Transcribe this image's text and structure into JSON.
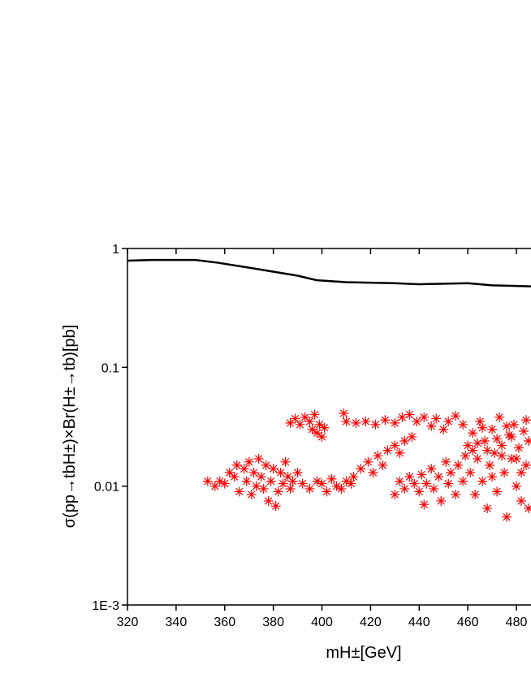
{
  "chart_data": {
    "type": "scatter",
    "x_label": "mH±[GeV]",
    "y_label": "σ(pp→tbH±)×Br(H±→tb)[pb]",
    "log_y": true,
    "xlim": [
      320,
      486
    ],
    "xticks": [
      320,
      340,
      360,
      380,
      400,
      420,
      440,
      460,
      480
    ],
    "ylim": [
      0.001,
      1
    ],
    "yticks": [
      {
        "value": 0.001,
        "label": "1E-3"
      },
      0.01,
      0.1,
      1
    ],
    "color": "#ff0000",
    "x": [
      353,
      356,
      358,
      360,
      362,
      364,
      365,
      366,
      368,
      369,
      370,
      371,
      372,
      373,
      374,
      375,
      376,
      377,
      378,
      379,
      380,
      381,
      382,
      383,
      384,
      385,
      386,
      387,
      388,
      390,
      392,
      387,
      389,
      391,
      393,
      395,
      396,
      397,
      398,
      399,
      400,
      401,
      409,
      395,
      398,
      400,
      402,
      404,
      406,
      408,
      410,
      412,
      413,
      416,
      419,
      421,
      423,
      425,
      427,
      430,
      432,
      434,
      437,
      410,
      414,
      418,
      422,
      426,
      430,
      433,
      436,
      439,
      442,
      445,
      447,
      450,
      452,
      455,
      458,
      430,
      432,
      434,
      436,
      438,
      440,
      441,
      442,
      443,
      445,
      446,
      448,
      449,
      451,
      452,
      453,
      455,
      456,
      458,
      459,
      460,
      461,
      462,
      463,
      464,
      465,
      466,
      467,
      468,
      469,
      470,
      471,
      472,
      473,
      474,
      475,
      476,
      477,
      478,
      479,
      480,
      481,
      482,
      483,
      484,
      485,
      462,
      466,
      470,
      474,
      478,
      482,
      485,
      468,
      472,
      476,
      480,
      464,
      484
    ],
    "values": [
      0.011,
      0.01,
      0.011,
      0.0105,
      0.013,
      0.012,
      0.015,
      0.009,
      0.014,
      0.011,
      0.016,
      0.0085,
      0.013,
      0.01,
      0.017,
      0.012,
      0.0095,
      0.015,
      0.0075,
      0.011,
      0.014,
      0.0068,
      0.009,
      0.013,
      0.0105,
      0.016,
      0.012,
      0.0095,
      0.011,
      0.013,
      0.0105,
      0.034,
      0.037,
      0.033,
      0.038,
      0.035,
      0.03,
      0.04,
      0.028,
      0.033,
      0.026,
      0.031,
      0.041,
      0.0095,
      0.011,
      0.0105,
      0.009,
      0.0115,
      0.01,
      0.0095,
      0.011,
      0.0105,
      0.012,
      0.014,
      0.016,
      0.013,
      0.018,
      0.015,
      0.02,
      0.022,
      0.019,
      0.024,
      0.026,
      0.035,
      0.034,
      0.035,
      0.033,
      0.036,
      0.034,
      0.038,
      0.04,
      0.035,
      0.038,
      0.032,
      0.037,
      0.03,
      0.035,
      0.039,
      0.033,
      0.0085,
      0.011,
      0.0095,
      0.012,
      0.0105,
      0.009,
      0.0125,
      0.007,
      0.0105,
      0.014,
      0.0095,
      0.012,
      0.0075,
      0.016,
      0.0105,
      0.013,
      0.0085,
      0.015,
      0.011,
      0.018,
      0.022,
      0.013,
      0.028,
      0.0085,
      0.017,
      0.035,
      0.011,
      0.024,
      0.0065,
      0.015,
      0.03,
      0.019,
      0.009,
      0.038,
      0.022,
      0.013,
      0.0055,
      0.027,
      0.017,
      0.033,
      0.01,
      0.021,
      0.0075,
      0.029,
      0.015,
      0.024,
      0.02,
      0.031,
      0.012,
      0.018,
      0.026,
      0.013,
      0.0065,
      0.02,
      0.025,
      0.032,
      0.017,
      0.023,
      0.036
    ],
    "line": {
      "color": "#000000",
      "x": [
        320,
        330,
        348,
        357,
        370,
        390,
        398,
        410,
        430,
        440,
        460,
        470,
        486
      ],
      "values": [
        0.79,
        0.8,
        0.8,
        0.76,
        0.69,
        0.59,
        0.54,
        0.52,
        0.51,
        0.5,
        0.51,
        0.49,
        0.48
      ]
    }
  }
}
